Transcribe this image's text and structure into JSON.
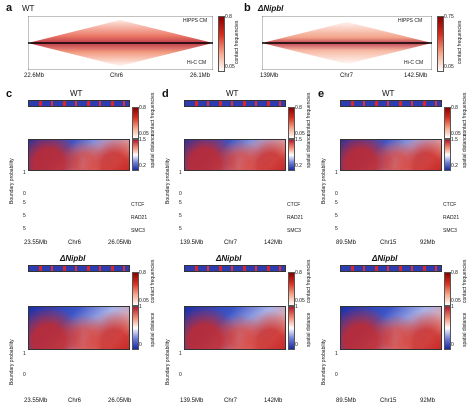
{
  "panel_a": {
    "label": "a",
    "title": "WT",
    "top_label": "HIPPS CM",
    "bottom_label": "Hi-C CM",
    "x_left": "22.6Mb",
    "x_mid": "Chr6",
    "x_right": "26.1Mb",
    "cbar_top": "0.8",
    "cbar_bottom": "0.05",
    "cbar_label": "contact frequencies"
  },
  "panel_b": {
    "label": "b",
    "title": "ΔNipbl",
    "top_label": "HIPPS CM",
    "bottom_label": "Hi-C CM",
    "x_left": "139Mb",
    "x_mid": "Chr7",
    "x_right": "142.5Mb",
    "cbar_top": "0.75",
    "cbar_bottom": "0.05",
    "cbar_label": "contact frequencies"
  },
  "panel_c": {
    "label": "c",
    "wt_title": "WT",
    "mut_title": "ΔNipbl",
    "x_left": "23.55Mb",
    "x_mid": "Chr6",
    "x_right": "26.05Mb",
    "x_left_2": "23.55Mb",
    "x_mid_2": "Chr6",
    "x_right_2": "26.05Mb",
    "cbar1_top": "0.8",
    "cbar1_bottom": "0.05",
    "cbar1_label": "contact frequencies",
    "cbar2_top": "1.5",
    "cbar2_bottom": "0.2",
    "cbar2_label": "spatial distance",
    "cbar3_top": "0.8",
    "cbar3_bottom": "0.05",
    "cbar3_label": "contact frequencies",
    "cbar4_top": "1",
    "cbar4_bottom": "0",
    "cbar4_label": "spatial distance",
    "bp_ylabel": "Boundary probability",
    "bp_ticks": [
      "1",
      "0"
    ],
    "bp_ticks_2": [
      "1",
      "0"
    ],
    "tracks": [
      "CTCF",
      "RAD21",
      "SMC3"
    ],
    "track_tick": "5"
  },
  "panel_d": {
    "label": "d",
    "wt_title": "WT",
    "mut_title": "ΔNipbl",
    "x_left": "139.5Mb",
    "x_mid": "Chr7",
    "x_right": "142Mb",
    "x_left_2": "139.5Mb",
    "x_mid_2": "Chr7",
    "x_right_2": "142Mb",
    "cbar1_top": "0.8",
    "cbar1_bottom": "0.05",
    "cbar1_label": "contact frequencies",
    "cbar2_top": "1.5",
    "cbar2_bottom": "0.2",
    "cbar2_label": "spatial distance",
    "cbar3_top": "0.8",
    "cbar3_bottom": "0.05",
    "cbar3_label": "contact frequencies",
    "cbar4_top": "1",
    "cbar4_bottom": "0",
    "cbar4_label": "spatial distance",
    "bp_ylabel": "Boundary probability",
    "bp_ticks": [
      "1",
      "0"
    ],
    "bp_ticks_2": [
      "1",
      "0"
    ],
    "tracks": [
      "CTCF",
      "RAD21",
      "SMC3"
    ],
    "track_tick": "5"
  },
  "panel_e": {
    "label": "e",
    "wt_title": "WT",
    "mut_title": "ΔNipbl",
    "x_left": "89.5Mb",
    "x_mid": "Chr15",
    "x_right": "92Mb",
    "x_left_2": "89.5Mb",
    "x_mid_2": "Chr15",
    "x_right_2": "92Mb",
    "cbar1_top": "0.8",
    "cbar1_bottom": "0.05",
    "cbar1_label": "contact frequencies",
    "cbar2_top": "1.5",
    "cbar2_bottom": "0.2",
    "cbar2_label": "spatial distance",
    "cbar3_top": "0.8",
    "cbar3_bottom": "0.05",
    "cbar3_label": "contact frequencies",
    "cbar4_top": "1",
    "cbar4_bottom": "0",
    "cbar4_label": "spatial distance",
    "bp_ylabel": "Boundary probability",
    "bp_ticks": [
      "1",
      "0"
    ],
    "bp_ticks_2": [
      "1",
      "0"
    ],
    "tracks": [
      "CTCF",
      "RAD21",
      "SMC3"
    ],
    "track_tick": "5"
  },
  "colors": {
    "hipps_red": "#d7301f",
    "spatial_blue": "#2d3db0",
    "ctcf_green": "#2a9d3a",
    "rad21_red": "#d62728",
    "smc3_blue": "#1f3fbf",
    "boundary_purple": "#9b30d9",
    "tad_black": "#000000"
  }
}
